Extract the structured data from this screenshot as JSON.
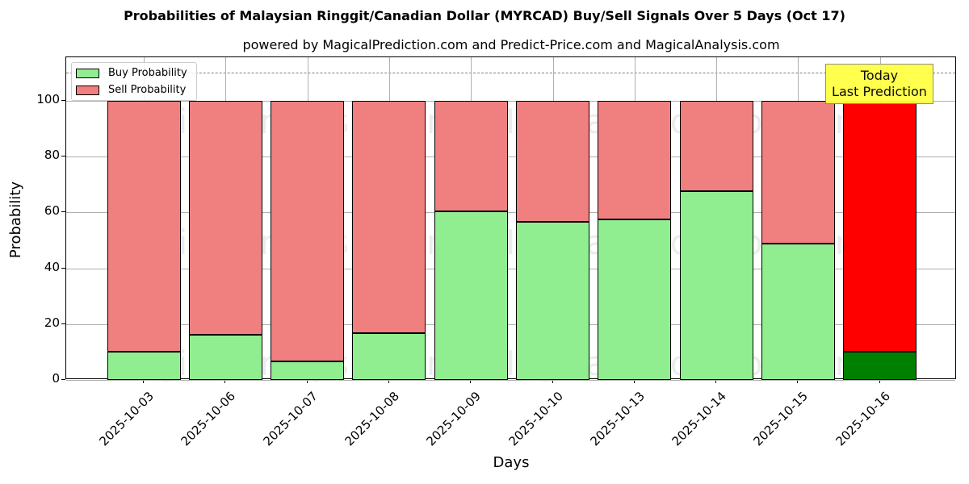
{
  "title": "Probabilities of Malaysian Ringgit/Canadian Dollar (MYRCAD) Buy/Sell Signals Over 5 Days (Oct 17)",
  "subtitle": "powered by MagicalPrediction.com and Predict-Price.com and MagicalAnalysis.com",
  "annotation": {
    "line1": "Today",
    "line2": "Last Prediction"
  },
  "watermarks": [
    "MagicalAnalysis.com",
    "MagicalPrediction.com"
  ],
  "colors": {
    "buy": "#90ee90",
    "sell": "#f08080",
    "today_buy": "#008000",
    "today_sell": "#ff0000",
    "annotation_bg": "#ffff44"
  },
  "chart_data": {
    "type": "bar",
    "stacked": true,
    "title": "Probabilities of Malaysian Ringgit/Canadian Dollar (MYRCAD) Buy/Sell Signals Over 5 Days (Oct 17)",
    "subtitle": "powered by MagicalPrediction.com and Predict-Price.com and MagicalAnalysis.com",
    "xlabel": "Days",
    "ylabel": "Probability",
    "ylim": [
      0,
      115
    ],
    "yticks": [
      0,
      20,
      40,
      60,
      80,
      100
    ],
    "grid": true,
    "legend_position": "upper left",
    "reference_line": {
      "y": 110,
      "style": "dashed"
    },
    "categories": [
      "2025-10-03",
      "2025-10-06",
      "2025-10-07",
      "2025-10-08",
      "2025-10-09",
      "2025-10-10",
      "2025-10-13",
      "2025-10-14",
      "2025-10-15",
      "2025-10-16"
    ],
    "series": [
      {
        "name": "Buy Probability",
        "values": [
          10.1,
          16.2,
          6.6,
          16.8,
          60.4,
          56.6,
          57.5,
          67.6,
          48.8,
          10.1
        ]
      },
      {
        "name": "Sell Probability",
        "values": [
          89.9,
          83.8,
          93.4,
          83.2,
          39.6,
          43.4,
          42.5,
          32.4,
          51.2,
          89.9
        ]
      }
    ],
    "highlight": {
      "category": "2025-10-16",
      "label": "Today\nLast Prediction"
    }
  }
}
